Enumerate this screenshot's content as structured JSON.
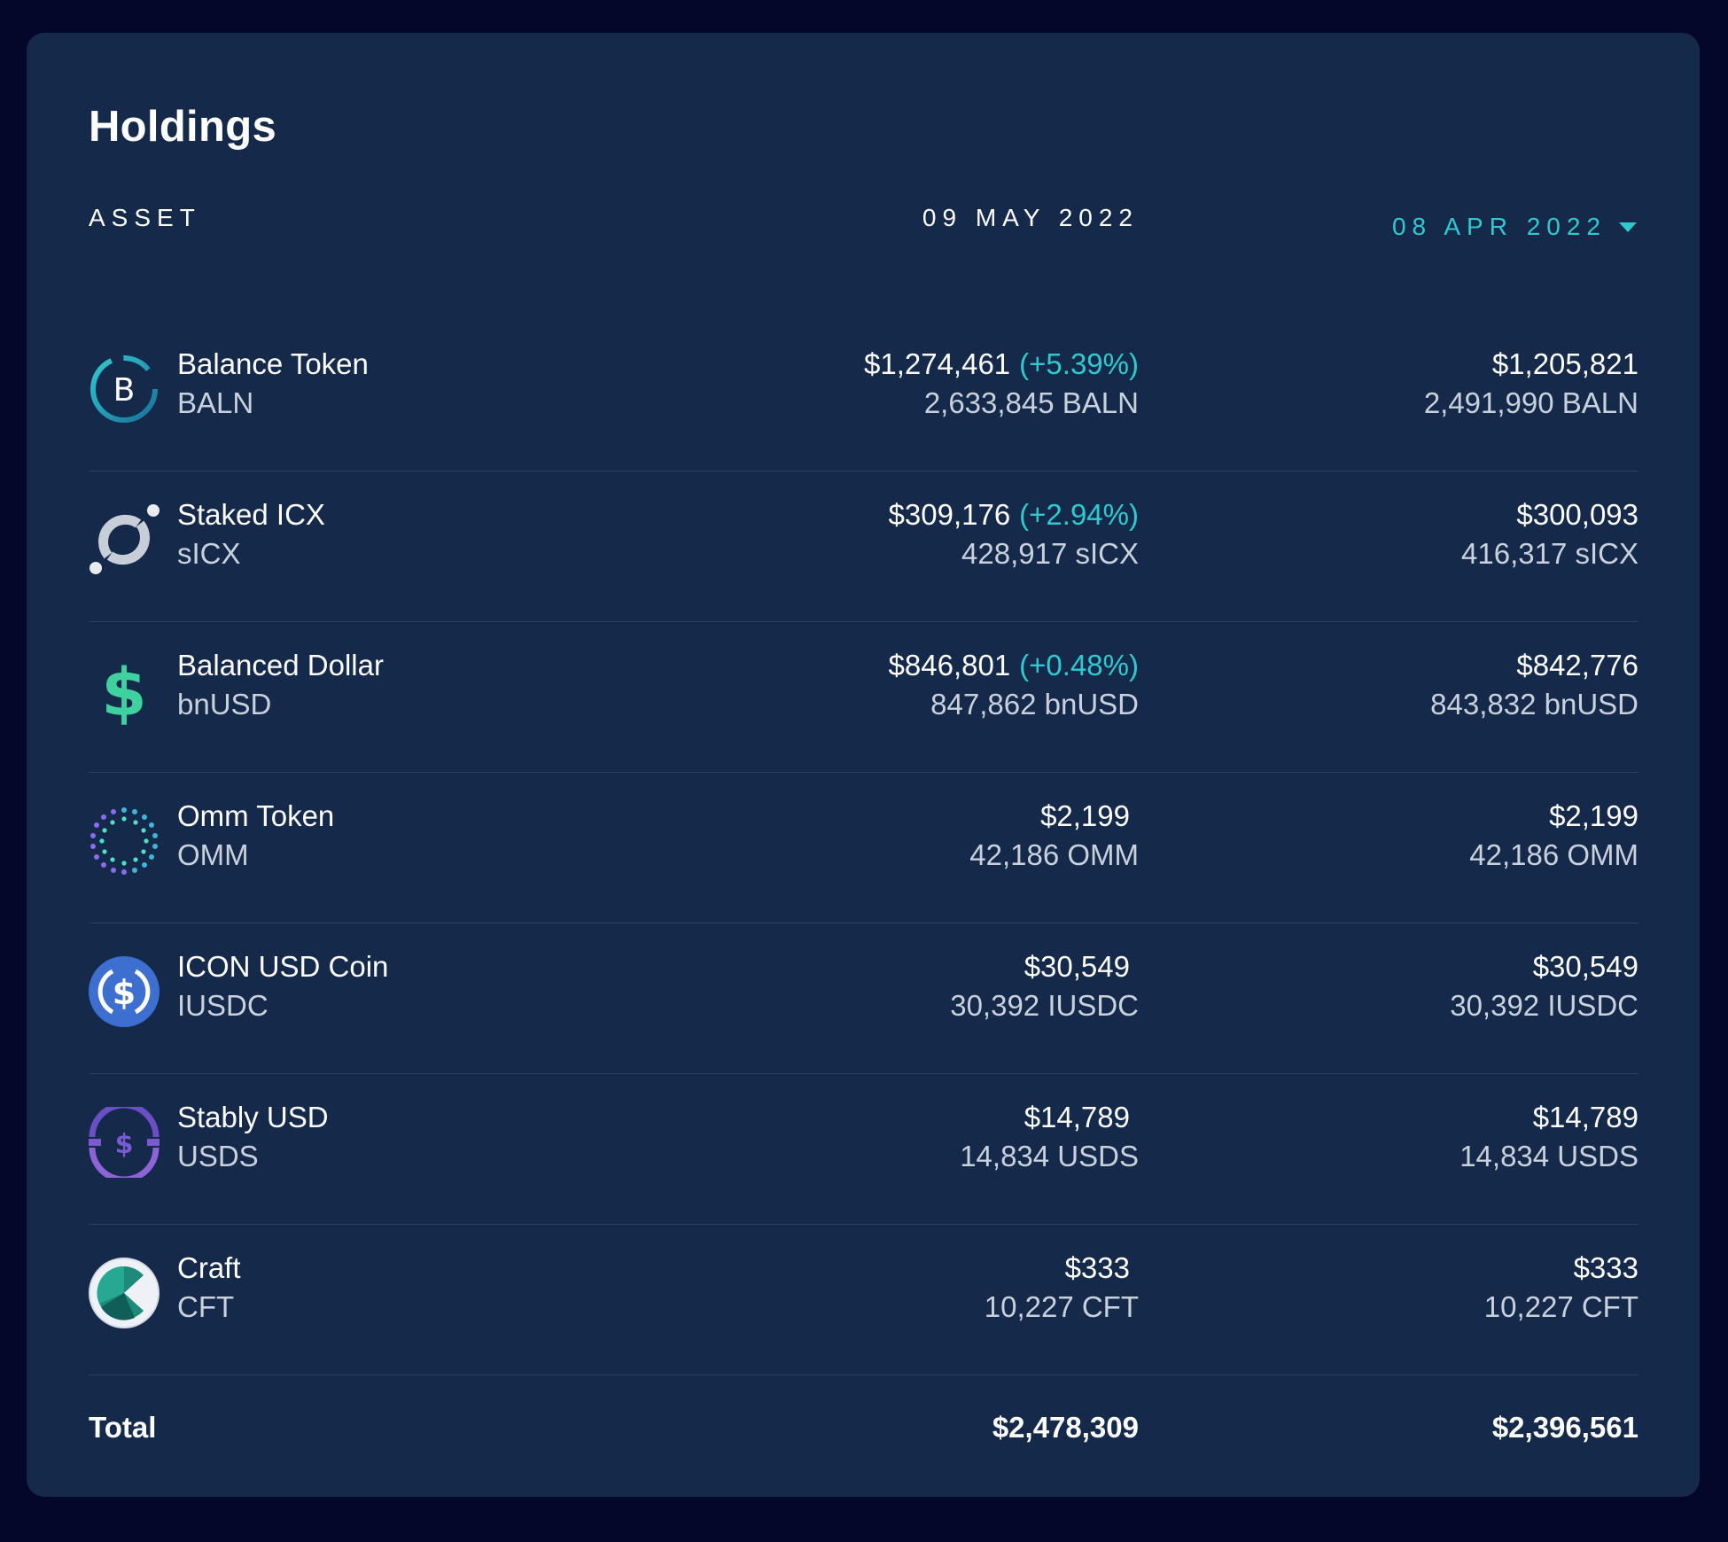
{
  "header": {
    "title": "Holdings",
    "asset_label": "ASSET",
    "date_current": "09 MAY 2022",
    "date_compare": "08 APR 2022"
  },
  "assets": [
    {
      "name": "Balance Token",
      "symbol": "BALN",
      "icon": "balance-token-icon",
      "value_current": "$1,274,461",
      "change": "(+5.39%)",
      "amount_current": "2,633,845 BALN",
      "value_compare": "$1,205,821",
      "amount_compare": "2,491,990 BALN"
    },
    {
      "name": "Staked ICX",
      "symbol": "sICX",
      "icon": "staked-icx-icon",
      "value_current": "$309,176",
      "change": "(+2.94%)",
      "amount_current": "428,917 sICX",
      "value_compare": "$300,093",
      "amount_compare": "416,317 sICX"
    },
    {
      "name": "Balanced Dollar",
      "symbol": "bnUSD",
      "icon": "balanced-dollar-icon",
      "value_current": "$846,801",
      "change": "(+0.48%)",
      "amount_current": "847,862 bnUSD",
      "value_compare": "$842,776",
      "amount_compare": "843,832 bnUSD"
    },
    {
      "name": "Omm Token",
      "symbol": "OMM",
      "icon": "omm-token-icon",
      "value_current": "$2,199",
      "change": "",
      "amount_current": "42,186 OMM",
      "value_compare": "$2,199",
      "amount_compare": "42,186 OMM"
    },
    {
      "name": "ICON USD Coin",
      "symbol": "IUSDC",
      "icon": "icon-usd-coin-icon",
      "value_current": "$30,549",
      "change": "",
      "amount_current": "30,392 IUSDC",
      "value_compare": "$30,549",
      "amount_compare": "30,392 IUSDC"
    },
    {
      "name": "Stably USD",
      "symbol": "USDS",
      "icon": "stably-usd-icon",
      "value_current": "$14,789",
      "change": "",
      "amount_current": "14,834 USDS",
      "value_compare": "$14,789",
      "amount_compare": "14,834 USDS"
    },
    {
      "name": "Craft",
      "symbol": "CFT",
      "icon": "craft-icon",
      "value_current": "$333",
      "change": "",
      "amount_current": "10,227 CFT",
      "value_compare": "$333",
      "amount_compare": "10,227 CFT"
    }
  ],
  "total": {
    "label": "Total",
    "value_current": "$2,478,309",
    "value_compare": "$2,396,561"
  },
  "colors": {
    "page_bg": "#04062a",
    "card_bg": "#15294a",
    "accent": "#2fcad0",
    "divider": "#2c405f"
  }
}
